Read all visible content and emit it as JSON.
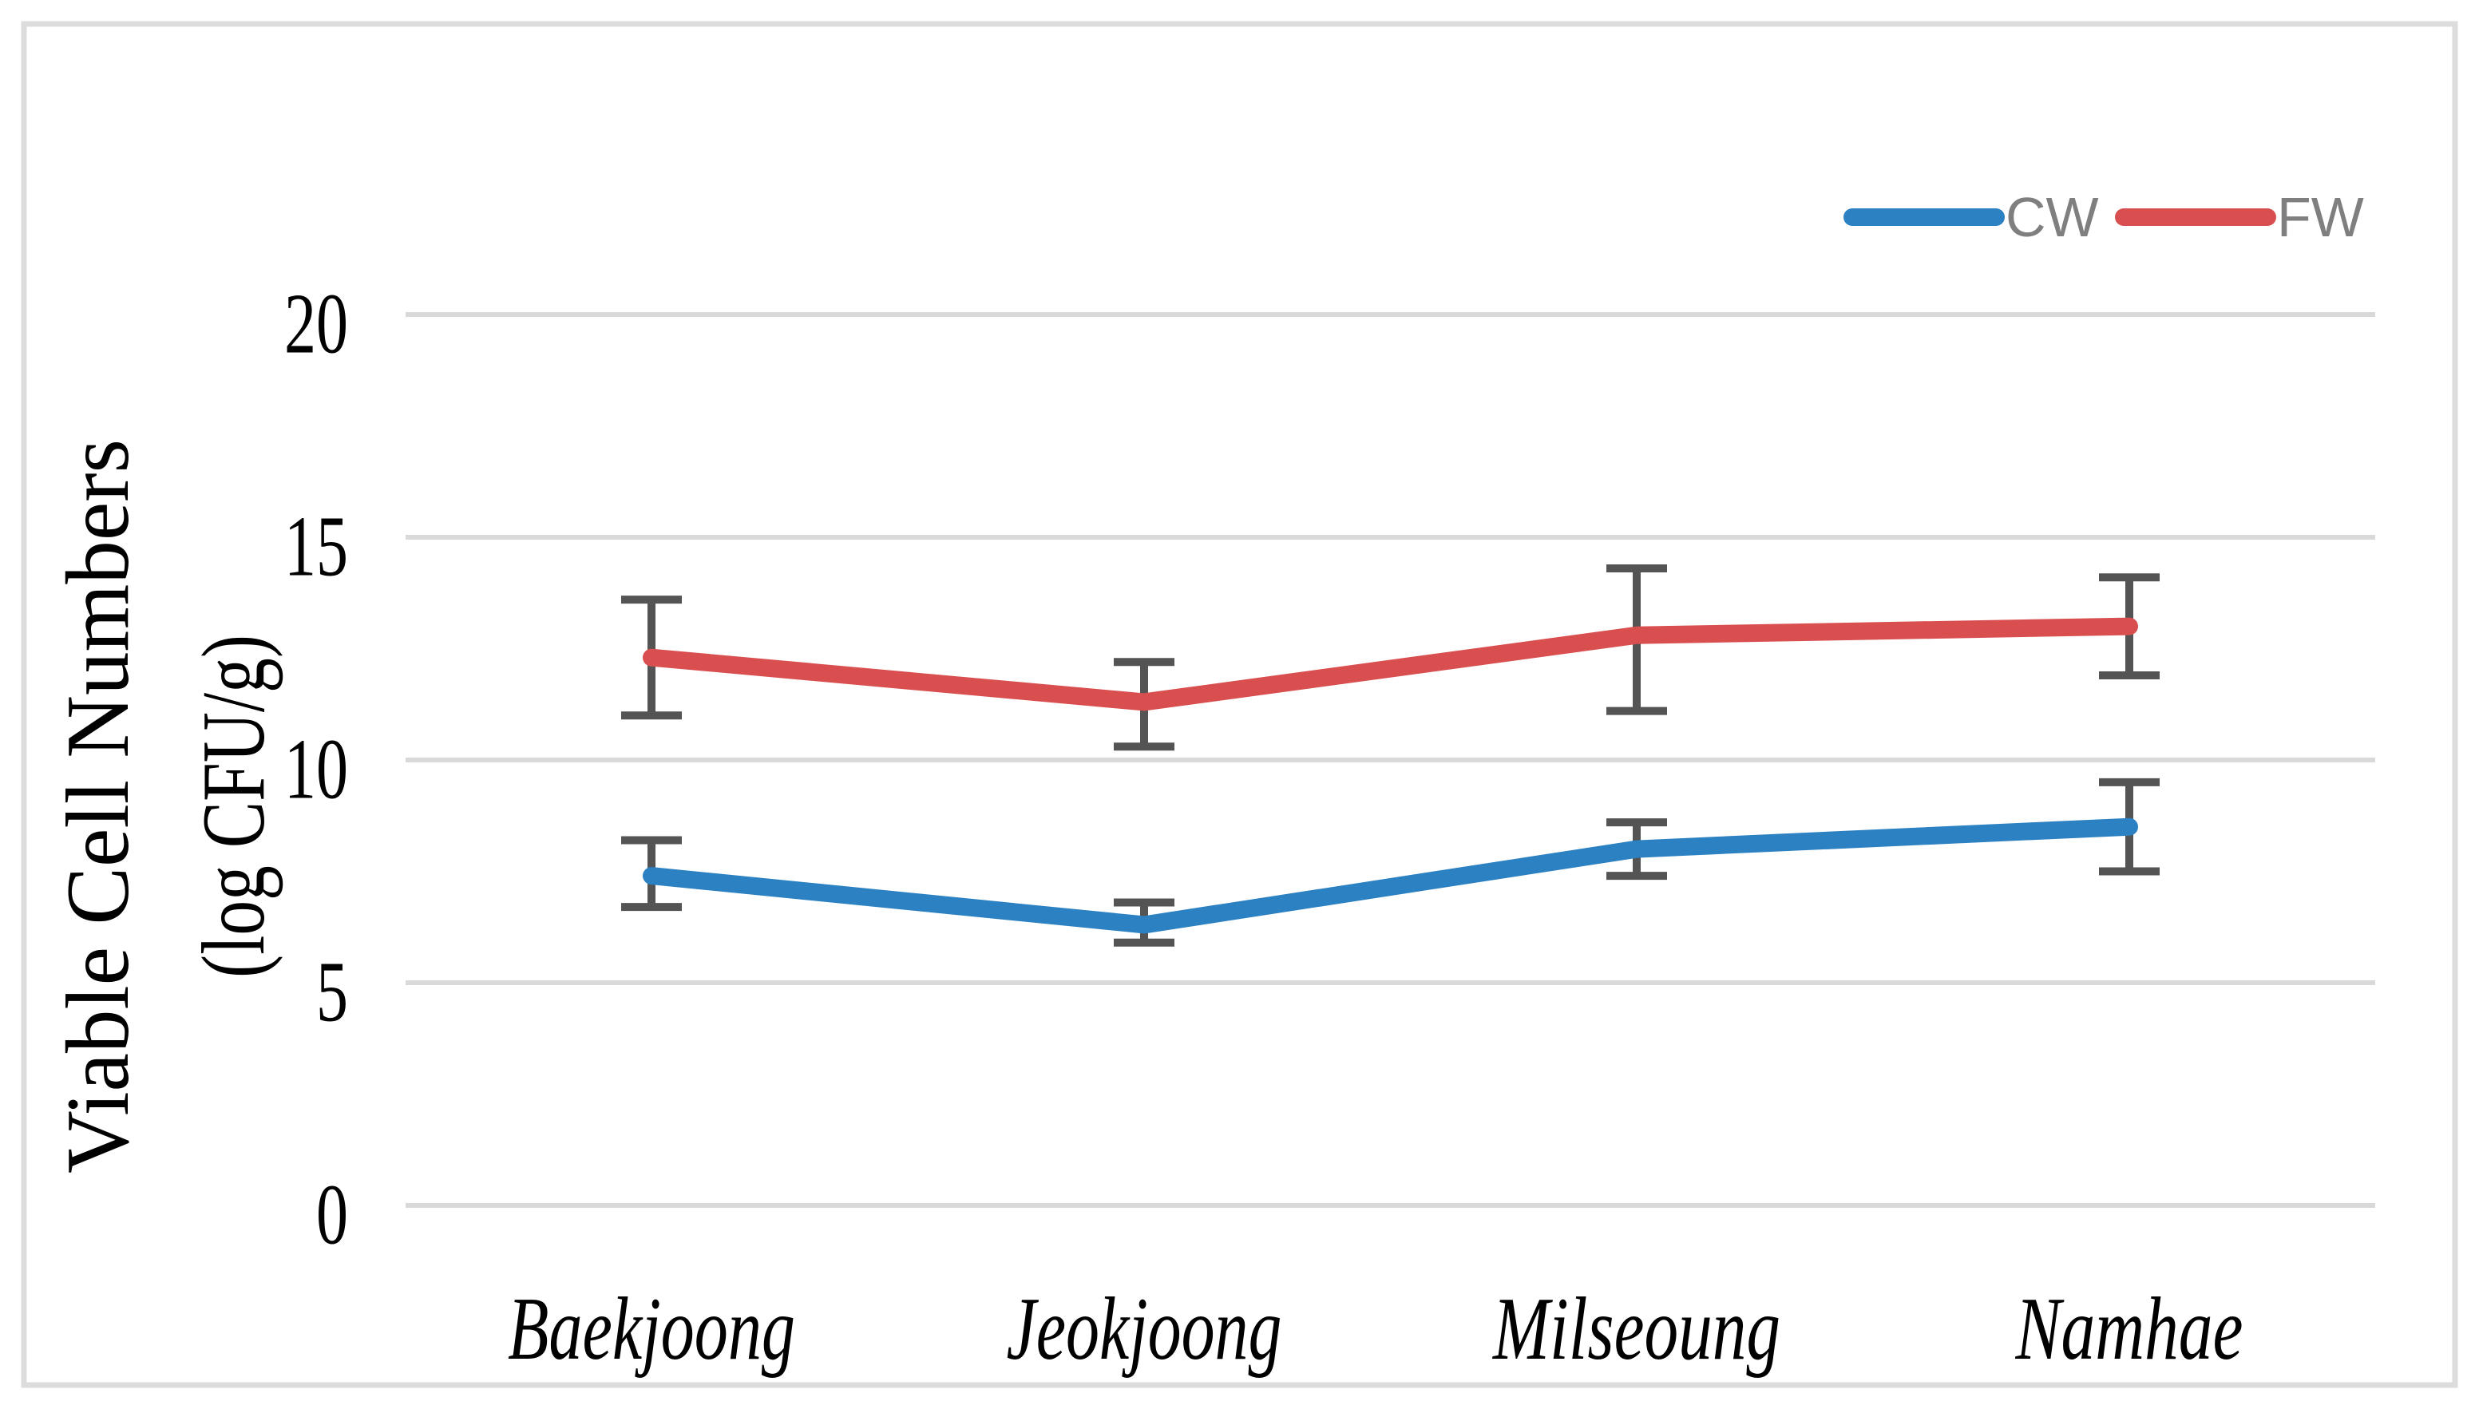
{
  "figure": {
    "background_color": "#ffffff",
    "border_color": "#dcdcdc"
  },
  "legend": [
    {
      "label": "CW",
      "color": "#2b81c1"
    },
    {
      "label": "FW",
      "color": "#d94f4f"
    }
  ],
  "y_axis": {
    "title_line1": "Viable Cell Numbers",
    "title_line2": "(log CFU/g)",
    "tick_labels": [
      "20",
      "15",
      "10",
      "5",
      "0"
    ]
  },
  "x_axis": {
    "categories": [
      "Baekjoong",
      "Jeokjoong",
      "Milseoung",
      "Namhae"
    ],
    "style": "italic"
  },
  "chart_data": {
    "type": "line",
    "title": "",
    "xlabel": "",
    "ylabel": "Viable Cell Numbers (log CFU/g)",
    "categories": [
      "Baekjoong",
      "Jeokjoong",
      "Milseoung",
      "Namhae"
    ],
    "series": [
      {
        "name": "CW",
        "color": "#2b81c1",
        "values": [
          7.4,
          6.3,
          8.0,
          8.5
        ],
        "error_low": [
          6.7,
          5.9,
          7.4,
          7.5
        ],
        "error_high": [
          8.2,
          6.8,
          8.6,
          9.5
        ]
      },
      {
        "name": "FW",
        "color": "#d94f4f",
        "values": [
          12.3,
          11.3,
          12.8,
          13.0
        ],
        "error_low": [
          11.0,
          10.3,
          11.1,
          11.9
        ],
        "error_high": [
          13.6,
          12.2,
          14.3,
          14.1
        ]
      }
    ],
    "ylim": [
      0,
      20
    ],
    "yticks": [
      0,
      5,
      10,
      15,
      20
    ],
    "grid": true,
    "legend_position": "top-right",
    "gridline_color": "#d9d9d9",
    "error_bar_color": "#545454"
  }
}
